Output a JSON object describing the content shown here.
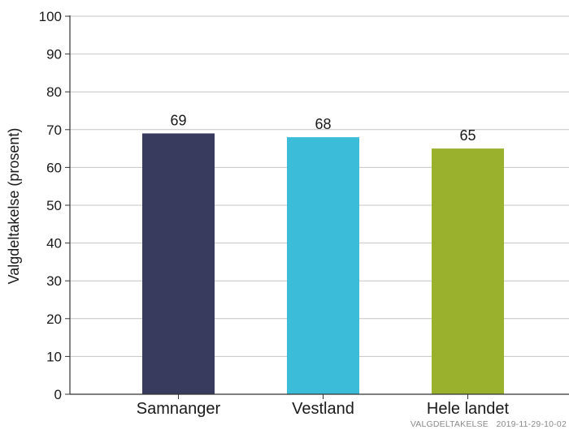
{
  "chart_data": {
    "type": "bar",
    "title": "",
    "xlabel": "",
    "ylabel": "Valgdeltakelse (prosent)",
    "ylim": [
      0,
      100
    ],
    "yticks": [
      0,
      10,
      20,
      30,
      40,
      50,
      60,
      70,
      80,
      90,
      100
    ],
    "grid": true,
    "categories": [
      "Samnanger",
      "Vestland",
      "Hele landet"
    ],
    "values": [
      69,
      68,
      65
    ],
    "colors": [
      "#383a5e",
      "#3bbcd9",
      "#99b12d"
    ],
    "value_labels": [
      "69",
      "68",
      "65"
    ]
  },
  "footer": {
    "source": "VALGDELTAKELSE",
    "timestamp": "2019-11-29-10-02"
  }
}
